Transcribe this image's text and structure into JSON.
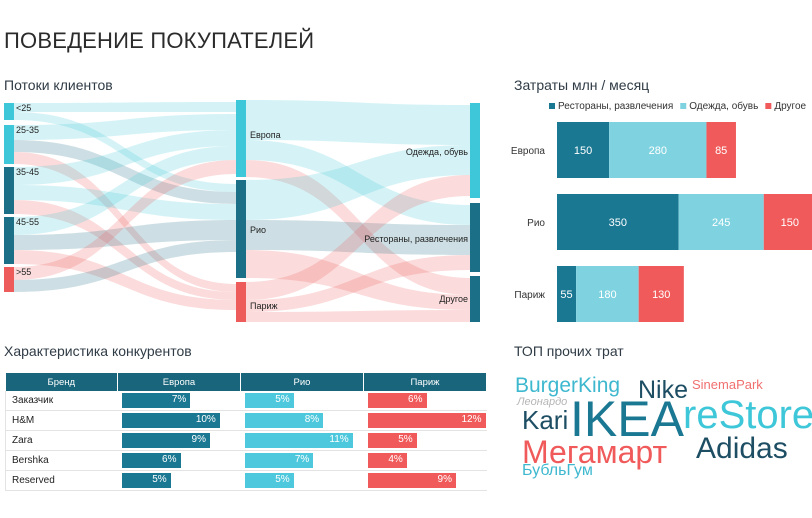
{
  "page_title": "ПОВЕДЕНИЕ ПОКУПАТЕЛЕЙ",
  "flows": {
    "title": "Потоки клиентов",
    "ages": [
      "<25",
      "25-35",
      "35-45",
      "45-55",
      ">55"
    ],
    "cities": [
      "Европа",
      "Рио",
      "Париж"
    ],
    "categories": [
      "Одежда, обувь",
      "Рестораны, развлечения",
      "Другое"
    ],
    "colors": {
      "dark": "#1b6f86",
      "teal": "#3ec7d8",
      "red": "#ee5b5b"
    }
  },
  "costs": {
    "title": "Затраты млн / месяц",
    "legend": [
      "Рестораны, развлечения",
      "Одежда, обувь",
      "Другое"
    ],
    "categories": [
      "Европа",
      "Рио",
      "Париж"
    ],
    "series": [
      {
        "name": "Рестораны, развлечения",
        "color": "#1b7893",
        "values": [
          150,
          350,
          55
        ]
      },
      {
        "name": "Одежда, обувь",
        "color": "#7fd3e0",
        "values": [
          280,
          245,
          180
        ]
      },
      {
        "name": "Другое",
        "color": "#f05a5a",
        "values": [
          85,
          150,
          130
        ]
      }
    ]
  },
  "competitors": {
    "title": "Характеристика конкурентов",
    "headers": [
      "Бренд",
      "Европа",
      "Рио",
      "Париж"
    ],
    "rows": [
      {
        "brand": "Заказчик",
        "eu": "7%",
        "rio": "5%",
        "par": "6%"
      },
      {
        "brand": "H&M",
        "eu": "10%",
        "rio": "8%",
        "par": "12%"
      },
      {
        "brand": "Zara",
        "eu": "9%",
        "rio": "11%",
        "par": "5%"
      },
      {
        "brand": "Bershka",
        "eu": "6%",
        "rio": "7%",
        "par": "4%"
      },
      {
        "brand": "Reserved",
        "eu": "5%",
        "rio": "5%",
        "par": "9%"
      }
    ],
    "values": {
      "eu": [
        7,
        10,
        9,
        6,
        5
      ],
      "rio": [
        5,
        8,
        11,
        7,
        5
      ],
      "par": [
        6,
        12,
        5,
        4,
        9
      ],
      "max": 12
    }
  },
  "top_other": {
    "title": "ТОП прочих трат",
    "words": {
      "burgerking": "BurgerKing",
      "nike": "Nike",
      "sinemapark": "SinemaPark",
      "leonardo": "Леонардо",
      "kari": "Kari",
      "ikea": "IKEA",
      "restore": "reStore",
      "megamart": "Мегамарт",
      "adidas": "Adidas",
      "bublgum": "БубльГум"
    }
  }
}
